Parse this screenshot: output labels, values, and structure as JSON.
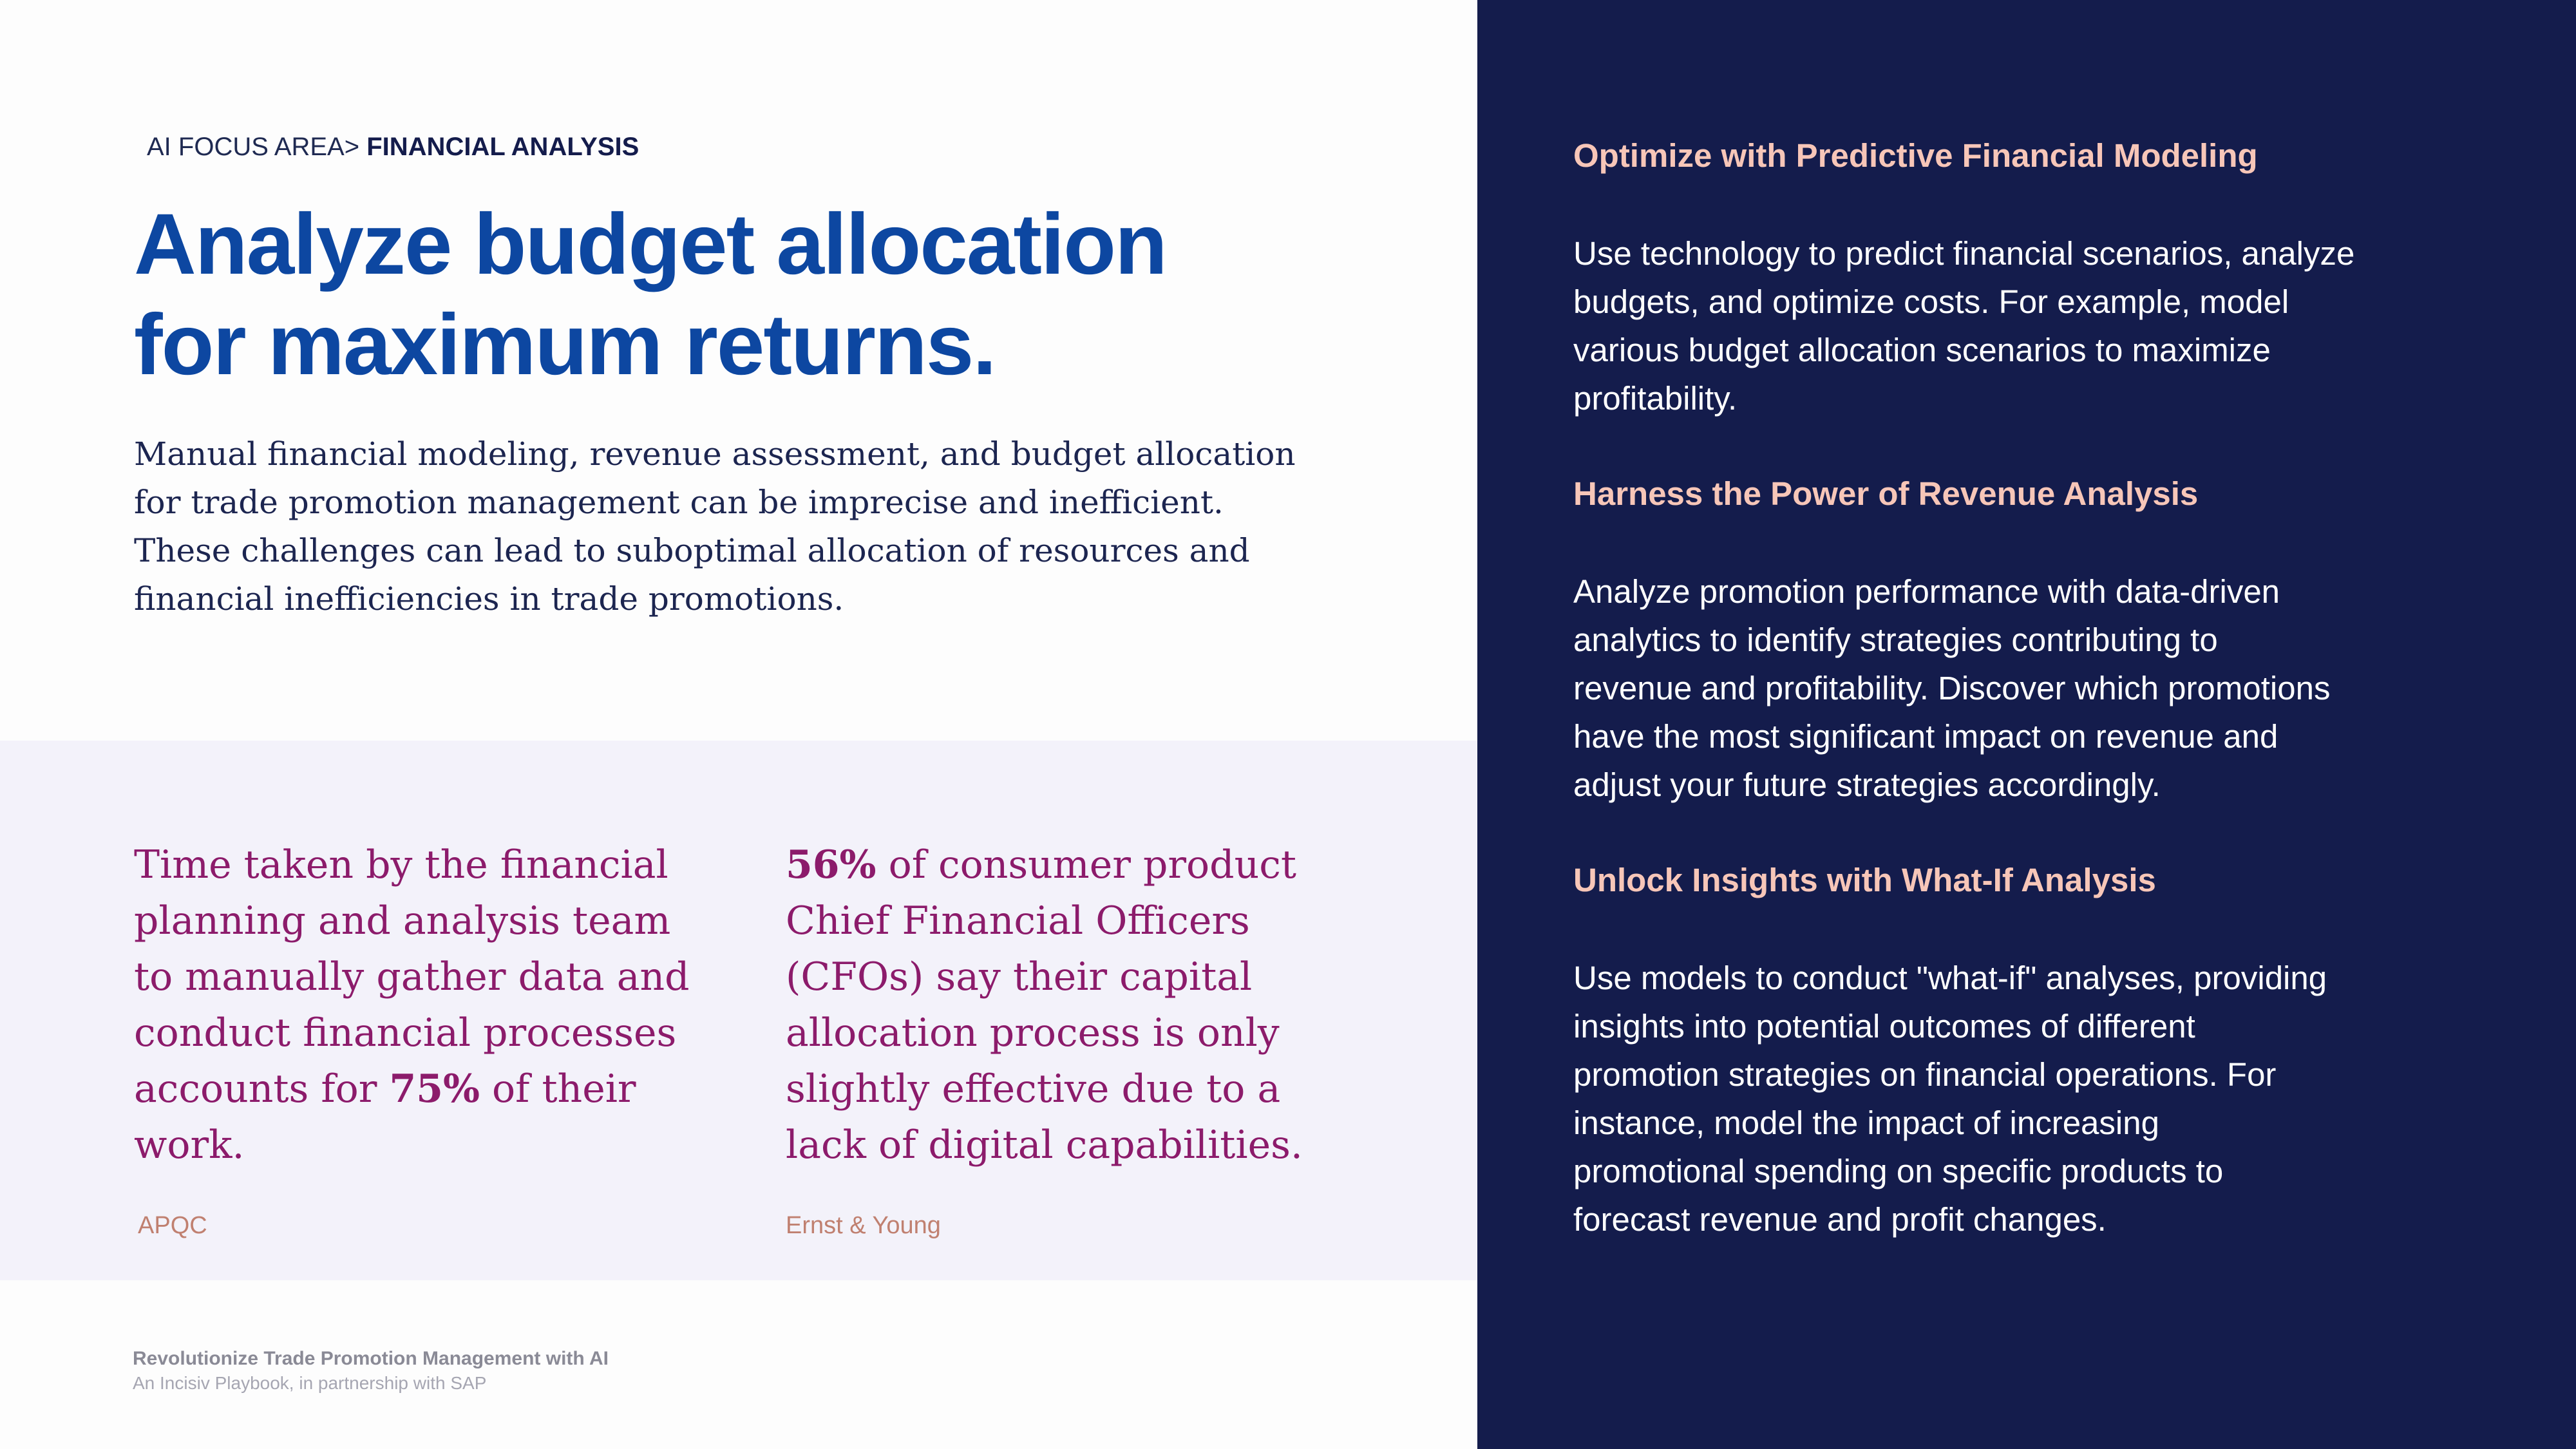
{
  "breadcrumb": {
    "prefix": "AI FOCUS AREA>",
    "current": "FINANCIAL ANALYSIS"
  },
  "headline": {
    "lines": [
      "Analyze budget allocation",
      "for maximum returns."
    ]
  },
  "intro": {
    "lines": [
      "Manual financial modeling, revenue assessment, and budget allocation",
      "for trade promotion management can be imprecise and inefficient.",
      "These challenges can lead to suboptimal allocation of resources and",
      "financial inefficiencies in trade promotions."
    ]
  },
  "stats": [
    {
      "lines": [
        "Time taken by the financial",
        "planning and analysis team",
        "to manually gather data and",
        "conduct financial processes"
      ],
      "last_before": "accounts for ",
      "highlight": "75%",
      "last_after": " of their",
      "tail": "work.",
      "source": "APQC"
    },
    {
      "highlight": "56%",
      "first_after": " of consumer product",
      "lines": [
        "Chief Financial Officers",
        "(CFOs) say their capital",
        "allocation process is only",
        "slightly effective due to a",
        "lack of digital capabilities."
      ],
      "source": "Ernst & Young"
    }
  ],
  "sidebar": {
    "sections": [
      {
        "heading": "Optimize with Predictive Financial Modeling",
        "lines": [
          "Use technology to predict financial scenarios, analyze",
          "budgets, and optimize costs. For example, model",
          "various budget allocation scenarios to maximize",
          "profitability."
        ]
      },
      {
        "heading": "Harness the Power of Revenue Analysis",
        "lines": [
          "Analyze promotion performance with data-driven",
          "analytics to identify strategies contributing to",
          "revenue and profitability. Discover which promotions",
          "have the most significant impact on revenue and",
          "adjust your future strategies accordingly."
        ]
      },
      {
        "heading": "Unlock Insights with What-If Analysis",
        "lines": [
          "Use models to conduct \"what-if\" analyses, providing",
          "insights into potential outcomes of different",
          "promotion strategies on financial operations. For",
          "instance, model the impact of increasing",
          "promotional spending on specific products to",
          "forecast revenue and profit changes."
        ]
      }
    ]
  },
  "footer": {
    "title": "Revolutionize Trade Promotion Management with AI",
    "subtitle": "An Incisiv Playbook, in partnership with SAP"
  },
  "colors": {
    "headline": "#0d47a1",
    "stat_text": "#8c1b6b",
    "sidebar_bg": "#141c4c",
    "sidebar_heading": "#f7c6b8",
    "stats_band_bg": "#f3f2fa",
    "source_text": "#c08070"
  }
}
